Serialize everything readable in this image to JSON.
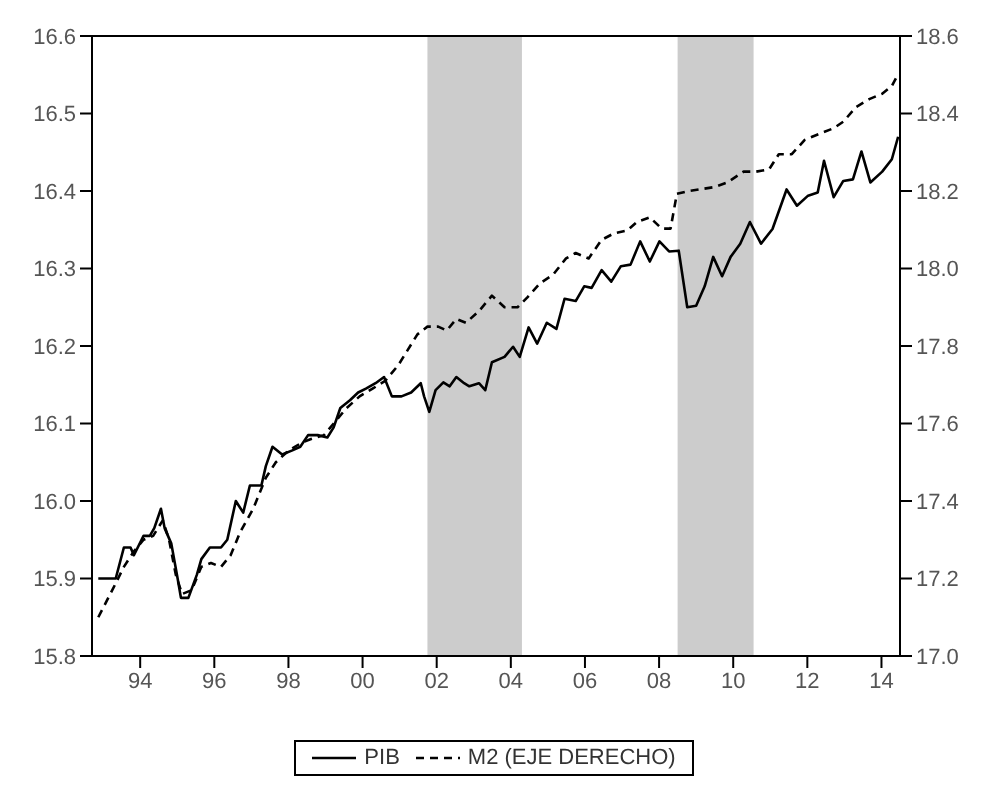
{
  "chart_data": {
    "type": "line",
    "xlim": [
      1992.7,
      2014.5
    ],
    "xticks": [
      {
        "value": 1994,
        "label": "94"
      },
      {
        "value": 1996,
        "label": "96"
      },
      {
        "value": 1998,
        "label": "98"
      },
      {
        "value": 2000,
        "label": "00"
      },
      {
        "value": 2002,
        "label": "02"
      },
      {
        "value": 2004,
        "label": "04"
      },
      {
        "value": 2006,
        "label": "06"
      },
      {
        "value": 2008,
        "label": "08"
      },
      {
        "value": 2010,
        "label": "10"
      },
      {
        "value": 2012,
        "label": "12"
      },
      {
        "value": 2014,
        "label": "14"
      }
    ],
    "ylim": [
      15.8,
      16.6
    ],
    "yticks": [
      15.8,
      15.9,
      {
        "value": 16,
        "label": "16.0"
      },
      16.1,
      16.2,
      16.3,
      16.4,
      16.5,
      16.6
    ],
    "y2lim": [
      17,
      18.6
    ],
    "y2ticks": [
      {
        "value": 17,
        "label": "17.0"
      },
      17.2,
      17.4,
      17.6,
      17.8,
      {
        "value": 18,
        "label": "18.0"
      },
      18.2,
      18.4,
      18.6
    ],
    "legend": "bottom",
    "grid": false,
    "bands": [
      {
        "axis": "x",
        "from": 2001.75,
        "to": 2004.3,
        "color": "#cccccc"
      },
      {
        "axis": "x",
        "from": 2008.5,
        "to": 2010.55,
        "color": "#cccccc"
      }
    ],
    "series": [
      {
        "name": "PIB",
        "color": "#000000",
        "line_style": "solid",
        "x": [
          1992.87,
          1993.34,
          1993.56,
          1993.74,
          1993.83,
          1994.09,
          1994.26,
          1994.38,
          1994.56,
          1994.66,
          1994.84,
          1995.01,
          1995.1,
          1995.3,
          1995.53,
          1995.65,
          1995.88,
          1996.18,
          1996.35,
          1996.58,
          1996.78,
          1996.96,
          1997.27,
          1997.39,
          1997.57,
          1997.83,
          1998.09,
          1998.32,
          1998.53,
          1998.79,
          1999.05,
          1999.22,
          1999.4,
          1999.66,
          1999.88,
          2000.09,
          2000.35,
          2000.58,
          2000.79,
          2001.05,
          2001.31,
          2001.57,
          2001.66,
          2001.8,
          2001.97,
          2002.18,
          2002.35,
          2002.53,
          2002.74,
          2002.88,
          2003.14,
          2003.31,
          2003.49,
          2003.83,
          2004.06,
          2004.24,
          2004.48,
          2004.71,
          2004.97,
          2005.23,
          2005.45,
          2005.75,
          2005.98,
          2006.18,
          2006.45,
          2006.71,
          2006.97,
          2007.23,
          2007.49,
          2007.75,
          2008.01,
          2008.27,
          2008.53,
          2008.76,
          2009.0,
          2009.23,
          2009.46,
          2009.7,
          2009.93,
          2010.19,
          2010.45,
          2010.75,
          2011.06,
          2011.44,
          2011.72,
          2012.02,
          2012.28,
          2012.45,
          2012.71,
          2012.97,
          2013.23,
          2013.46,
          2013.7,
          2014.02,
          2014.28,
          2014.45
        ],
        "values": [
          15.9,
          15.9,
          15.94,
          15.94,
          15.93,
          15.955,
          15.955,
          15.965,
          15.99,
          15.965,
          15.945,
          15.9,
          15.875,
          15.875,
          15.905,
          15.925,
          15.94,
          15.94,
          15.95,
          16.0,
          15.985,
          16.02,
          16.02,
          16.045,
          16.07,
          16.06,
          16.065,
          16.07,
          16.085,
          16.085,
          16.082,
          16.095,
          16.12,
          16.13,
          16.14,
          16.145,
          16.152,
          16.16,
          16.135,
          16.135,
          16.14,
          16.152,
          16.135,
          16.115,
          16.143,
          16.153,
          16.148,
          16.16,
          16.152,
          16.148,
          16.152,
          16.143,
          16.179,
          16.186,
          16.199,
          16.186,
          16.224,
          16.203,
          16.23,
          16.222,
          16.261,
          16.258,
          16.277,
          16.275,
          16.298,
          16.283,
          16.303,
          16.305,
          16.335,
          16.309,
          16.335,
          16.322,
          16.323,
          16.25,
          16.252,
          16.277,
          16.315,
          16.29,
          16.315,
          16.332,
          16.36,
          16.332,
          16.351,
          16.402,
          16.381,
          16.394,
          16.398,
          16.439,
          16.392,
          16.413,
          16.415,
          16.451,
          16.411,
          16.425,
          16.441,
          16.47
        ]
      },
      {
        "name": "M2 (EJE DERECHO)",
        "color": "#000000",
        "line_style": "dashed",
        "axis": "y2",
        "x": [
          1992.87,
          1993.3,
          1993.56,
          1993.83,
          1994.09,
          1994.35,
          1994.61,
          1994.78,
          1994.96,
          1995.13,
          1995.39,
          1995.65,
          1995.91,
          1996.18,
          1996.44,
          1996.7,
          1997.05,
          1997.39,
          1997.66,
          1998.0,
          1998.35,
          1998.61,
          1998.96,
          1999.22,
          1999.57,
          1999.92,
          2000.27,
          2000.61,
          2000.96,
          2001.22,
          2001.48,
          2001.75,
          2002.04,
          2002.27,
          2002.53,
          2002.79,
          2003.14,
          2003.49,
          2003.83,
          2004.18,
          2004.44,
          2004.79,
          2005.14,
          2005.49,
          2005.75,
          2006.1,
          2006.45,
          2006.79,
          2007.14,
          2007.4,
          2007.75,
          2008.07,
          2008.31,
          2008.48,
          2008.8,
          2009.14,
          2009.49,
          2009.84,
          2010.28,
          2010.62,
          2010.97,
          2011.23,
          2011.58,
          2011.93,
          2012.36,
          2012.71,
          2012.97,
          2013.32,
          2013.67,
          2014.02,
          2014.28,
          2014.45
        ],
        "values": [
          17.1,
          17.18,
          17.23,
          17.27,
          17.3,
          17.31,
          17.35,
          17.3,
          17.21,
          17.16,
          17.17,
          17.23,
          17.24,
          17.23,
          17.26,
          17.32,
          17.38,
          17.46,
          17.5,
          17.53,
          17.55,
          17.56,
          17.57,
          17.6,
          17.64,
          17.67,
          17.69,
          17.71,
          17.75,
          17.79,
          17.83,
          17.85,
          17.85,
          17.84,
          17.87,
          17.86,
          17.89,
          17.93,
          17.9,
          17.9,
          17.925,
          17.962,
          17.984,
          18.026,
          18.04,
          18.026,
          18.074,
          18.091,
          18.098,
          18.12,
          18.132,
          18.103,
          18.103,
          18.193,
          18.2,
          18.205,
          18.21,
          18.222,
          18.25,
          18.25,
          18.256,
          18.295,
          18.295,
          18.332,
          18.349,
          18.362,
          18.379,
          18.417,
          18.437,
          18.451,
          18.471,
          18.502
        ]
      }
    ]
  }
}
